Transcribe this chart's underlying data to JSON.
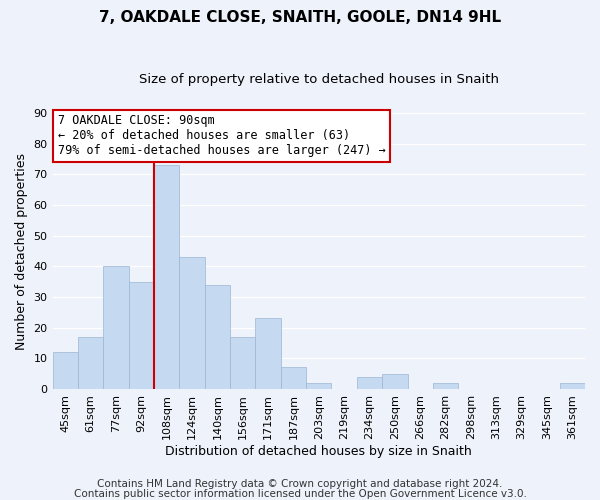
{
  "title": "7, OAKDALE CLOSE, SNAITH, GOOLE, DN14 9HL",
  "subtitle": "Size of property relative to detached houses in Snaith",
  "xlabel": "Distribution of detached houses by size in Snaith",
  "ylabel": "Number of detached properties",
  "bar_labels": [
    "45sqm",
    "61sqm",
    "77sqm",
    "92sqm",
    "108sqm",
    "124sqm",
    "140sqm",
    "156sqm",
    "171sqm",
    "187sqm",
    "203sqm",
    "219sqm",
    "234sqm",
    "250sqm",
    "266sqm",
    "282sqm",
    "298sqm",
    "313sqm",
    "329sqm",
    "345sqm",
    "361sqm"
  ],
  "bar_values": [
    12,
    17,
    40,
    35,
    73,
    43,
    34,
    17,
    23,
    7,
    2,
    0,
    4,
    5,
    0,
    2,
    0,
    0,
    0,
    0,
    2
  ],
  "bar_color": "#c5d9f1",
  "bar_edge_color": "#9ab5d5",
  "vline_color": "#cc0000",
  "ylim": [
    0,
    90
  ],
  "yticks": [
    0,
    10,
    20,
    30,
    40,
    50,
    60,
    70,
    80,
    90
  ],
  "annotation_line1": "7 OAKDALE CLOSE: 90sqm",
  "annotation_line2": "← 20% of detached houses are smaller (63)",
  "annotation_line3": "79% of semi-detached houses are larger (247) →",
  "annotation_box_color": "#ffffff",
  "annotation_box_edge": "#cc0000",
  "footer1": "Contains HM Land Registry data © Crown copyright and database right 2024.",
  "footer2": "Contains public sector information licensed under the Open Government Licence v3.0.",
  "background_color": "#eef2fa",
  "grid_color": "#ffffff",
  "title_fontsize": 11,
  "subtitle_fontsize": 9.5,
  "xlabel_fontsize": 9,
  "ylabel_fontsize": 9,
  "tick_fontsize": 8,
  "footer_fontsize": 7.5,
  "annotation_fontsize": 8.5
}
